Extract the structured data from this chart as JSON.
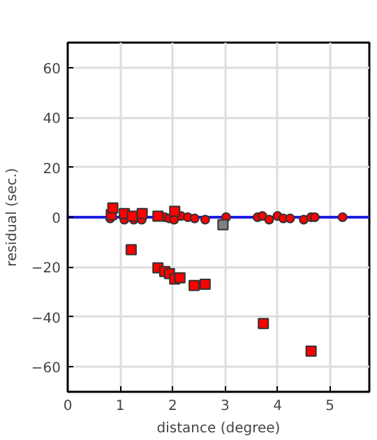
{
  "chart_data": {
    "type": "scatter",
    "xlabel": "distance (degree)",
    "ylabel": "residual (sec.)",
    "xlim": [
      0,
      5.75
    ],
    "ylim": [
      -70,
      70
    ],
    "xticks": [
      0,
      1,
      2,
      3,
      4,
      5
    ],
    "yticks": [
      -60,
      -40,
      -20,
      0,
      20,
      40,
      60
    ],
    "grid": true,
    "series": [
      {
        "type": "line",
        "color": "#2020e0",
        "marker": "none",
        "x": [
          0,
          5.75
        ],
        "values": [
          0,
          0
        ]
      },
      {
        "color": "#ff0000",
        "marker": "circle",
        "x": [
          0.81,
          1.08,
          1.26,
          1.41,
          1.85,
          1.94,
          2.03,
          2.16,
          2.29,
          2.42,
          2.62,
          3.02,
          3.62,
          3.71,
          3.84,
          4.0,
          4.11,
          4.24,
          4.5,
          4.64,
          4.71,
          5.24
        ],
        "values": [
          -0.5,
          -1,
          -1,
          -1,
          0,
          -0.5,
          -1,
          0.5,
          0,
          -0.5,
          -1,
          0,
          0,
          0.5,
          -1,
          0.5,
          -0.5,
          -0.5,
          -1,
          0,
          0,
          0
        ]
      },
      {
        "color": "#ff0000",
        "marker": "square",
        "x": [
          0.83,
          0.86,
          1.08,
          1.23,
          1.42,
          1.72,
          2.04,
          1.21,
          1.72,
          1.85,
          1.94,
          2.04,
          2.14,
          2.41,
          2.62,
          3.73,
          4.64
        ],
        "values": [
          1,
          3.7,
          1.5,
          0.4,
          1.5,
          0.4,
          2.4,
          -13,
          -20.3,
          -21.8,
          -22.6,
          -24.8,
          -24.3,
          -27.4,
          -26.9,
          -42.6,
          -53.7
        ]
      },
      {
        "color": "#808080",
        "marker": "square",
        "x": [
          2.96
        ],
        "values": [
          -3
        ]
      }
    ]
  }
}
